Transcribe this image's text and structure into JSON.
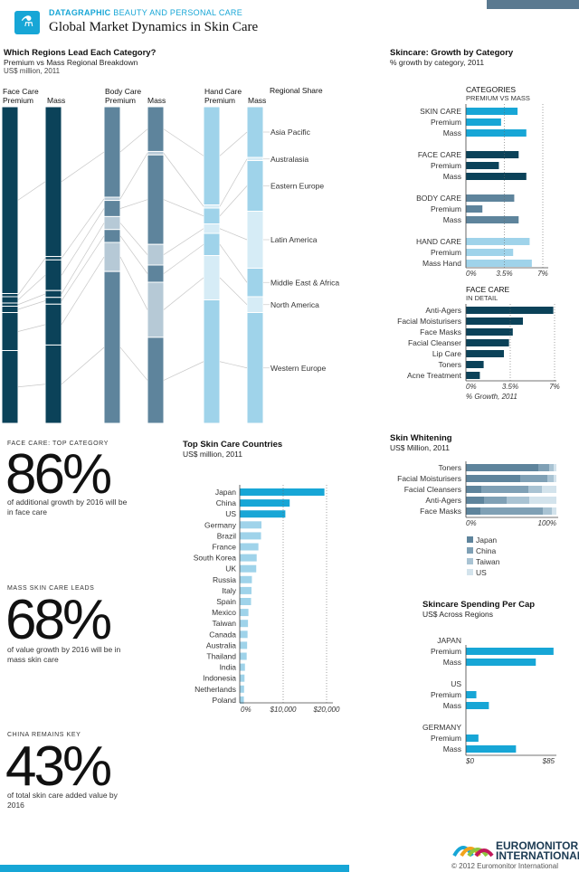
{
  "header": {
    "kicker_bold": "DATAGRAPHIC",
    "kicker_rest": "BEAUTY AND PERSONAL CARE",
    "title": "Global Market Dynamics in Skin Care",
    "logo_icon": "bottle-icon"
  },
  "colors": {
    "face": "#0b4259",
    "body": "#5e849c",
    "body_light": "#b6c9d6",
    "hand": "#9fd3ea",
    "hand_light": "#d6ecf6",
    "accent": "#17a6d6",
    "dark": "#0b4259"
  },
  "regions_chart": {
    "title": "Which Regions Lead Each Category?",
    "subtitle": "Premium vs Mass Regional Breakdown",
    "unit": "US$ million, 2011",
    "groups": [
      {
        "name": "Face Care",
        "cols": [
          "Premium",
          "Mass"
        ]
      },
      {
        "name": "Body Care",
        "cols": [
          "Premium",
          "Mass"
        ]
      },
      {
        "name": "Hand Care",
        "cols": [
          "Premium",
          "Mass"
        ]
      }
    ],
    "legend_title": "Regional Share",
    "regions": [
      "Asia Pacific",
      "Australasia",
      "Eastern Europe",
      "Latin America",
      "Middle East & Africa",
      "North America",
      "Western Europe"
    ]
  },
  "chart_data": [
    {
      "type": "bar",
      "title": "Which Regions Lead Each Category?",
      "subtitle": "Premium vs Mass Regional Breakdown",
      "ylabel": "US$ million, 2011",
      "categories": [
        "Face Care Premium",
        "Face Care Mass",
        "Body Care Premium",
        "Body Care Mass",
        "Hand Care Premium",
        "Hand Care Mass"
      ],
      "series": [
        {
          "name": "Asia Pacific",
          "values": [
            59,
            44,
            28,
            13,
            31,
            16
          ]
        },
        {
          "name": "Australasia",
          "values": [
            1,
            1,
            1,
            1,
            1,
            1
          ]
        },
        {
          "name": "Eastern Europe",
          "values": [
            2,
            9,
            5,
            26,
            5,
            16
          ]
        },
        {
          "name": "Latin America",
          "values": [
            1,
            2,
            4,
            6,
            3,
            18
          ]
        },
        {
          "name": "Middle East & Africa",
          "values": [
            2,
            2,
            4,
            5,
            7,
            9
          ]
        },
        {
          "name": "North America",
          "values": [
            12,
            12,
            9,
            16,
            14,
            5
          ]
        },
        {
          "name": "Western Europe",
          "values": [
            23,
            23,
            47,
            25,
            39,
            35
          ]
        }
      ]
    },
    {
      "type": "bar",
      "title": "Skincare: Growth by Category",
      "subtitle": "% growth by category, 2011",
      "xlabel": "",
      "xlim": [
        0,
        7
      ],
      "ticks": [
        "0%",
        "3.5%",
        "7%"
      ],
      "header": "CATEGORIES",
      "header_sub": "PREMIUM VS MASS",
      "groups": [
        {
          "label": "SKIN CARE",
          "values": [
            {
              "label": "SKIN CARE",
              "v": 4.7,
              "style": "accent"
            },
            {
              "label": "Premium",
              "v": 3.2,
              "style": "accent"
            },
            {
              "label": "Mass",
              "v": 5.5,
              "style": "accent"
            }
          ]
        },
        {
          "label": "FACE CARE",
          "values": [
            {
              "label": "FACE CARE",
              "v": 4.8,
              "style": "dark"
            },
            {
              "label": "Premium",
              "v": 3.0,
              "style": "dark"
            },
            {
              "label": "Mass",
              "v": 5.5,
              "style": "dark"
            }
          ]
        },
        {
          "label": "BODY CARE",
          "values": [
            {
              "label": "BODY CARE",
              "v": 4.4,
              "style": "mid"
            },
            {
              "label": "Premium",
              "v": 1.5,
              "style": "mid"
            },
            {
              "label": "Mass",
              "v": 4.8,
              "style": "mid"
            }
          ]
        },
        {
          "label": "HAND CARE",
          "values": [
            {
              "label": "HAND CARE",
              "v": 5.8,
              "style": "light"
            },
            {
              "label": "Premium",
              "v": 4.3,
              "style": "light"
            },
            {
              "label": "Mass Hand",
              "v": 6.0,
              "style": "light"
            }
          ]
        }
      ]
    },
    {
      "type": "bar",
      "title": "FACE CARE",
      "subtitle": "IN DETAIL",
      "xlabel": "% Growth, 2011",
      "xlim": [
        0,
        7
      ],
      "ticks": [
        "0%",
        "3.5%",
        "7%"
      ],
      "categories": [
        "Anti-Agers",
        "Facial Moisturisers",
        "Face Masks",
        "Facial Cleanser",
        "Lip Care",
        "Toners",
        "Acne Treatment"
      ],
      "values": [
        6.9,
        4.5,
        3.7,
        3.4,
        3.0,
        1.4,
        1.1
      ]
    },
    {
      "type": "bar",
      "title": "Top Skin Care Countries",
      "subtitle": "US$ million, 2011",
      "xlim": [
        0,
        21000
      ],
      "ticks": [
        "0%",
        "$10,000",
        "$20,000"
      ],
      "categories": [
        "Japan",
        "China",
        "US",
        "Germany",
        "Brazil",
        "France",
        "South Korea",
        "UK",
        "Russia",
        "Italy",
        "Spain",
        "Mexico",
        "Taiwan",
        "Canada",
        "Australia",
        "Thailand",
        "India",
        "Indonesia",
        "Netherlands",
        "Poland"
      ],
      "values": [
        19500,
        11500,
        10500,
        5000,
        4900,
        4300,
        3900,
        3800,
        2800,
        2700,
        2600,
        2000,
        1900,
        1800,
        1700,
        1600,
        1200,
        1100,
        1000,
        950
      ]
    },
    {
      "type": "bar",
      "title": "Skin Whitening",
      "subtitle": "US$ Million, 2011",
      "stacked": true,
      "xlim": [
        0,
        100
      ],
      "ticks": [
        "0%",
        "100%"
      ],
      "categories": [
        "Toners",
        "Facial Moisturisers",
        "Facial Cleansers",
        "Anti-Agers",
        "Face Masks"
      ],
      "series": [
        {
          "name": "Japan",
          "values": [
            80,
            60,
            17,
            20,
            16
          ]
        },
        {
          "name": "China",
          "values": [
            12,
            30,
            52,
            25,
            69
          ]
        },
        {
          "name": "Taiwan",
          "values": [
            5,
            7,
            15,
            25,
            10
          ]
        },
        {
          "name": "US",
          "values": [
            3,
            3,
            16,
            30,
            5
          ]
        }
      ]
    },
    {
      "type": "bar",
      "title": "Skincare Spending Per Cap",
      "subtitle": "US$ Across Regions",
      "xlim": [
        0,
        85
      ],
      "ticks": [
        "$0",
        "$85"
      ],
      "groups": [
        {
          "label": "JAPAN",
          "values": [
            {
              "label": "Premium",
              "v": 84
            },
            {
              "label": "Mass",
              "v": 67
            }
          ]
        },
        {
          "label": "US",
          "values": [
            {
              "label": "Premium",
              "v": 10
            },
            {
              "label": "Mass",
              "v": 22
            }
          ]
        },
        {
          "label": "GERMANY",
          "values": [
            {
              "label": "Premium",
              "v": 12
            },
            {
              "label": "Mass",
              "v": 48
            }
          ]
        }
      ]
    }
  ],
  "stats": [
    {
      "cap": "FACE CARE: TOP CATEGORY",
      "big": "86%",
      "desc": "of additional growth by 2016 will be in face care"
    },
    {
      "cap": "MASS SKIN CARE LEADS",
      "big": "68%",
      "desc": "of value growth by 2016 will be in mass skin care"
    },
    {
      "cap": "CHINA REMAINS KEY",
      "big": "43%",
      "desc": "of total skin care added value by 2016"
    }
  ],
  "footer": {
    "brand1": "EUROMONITOR",
    "brand2": "INTERNATIONAL",
    "copyright": "© 2012 Euromonitor International"
  }
}
